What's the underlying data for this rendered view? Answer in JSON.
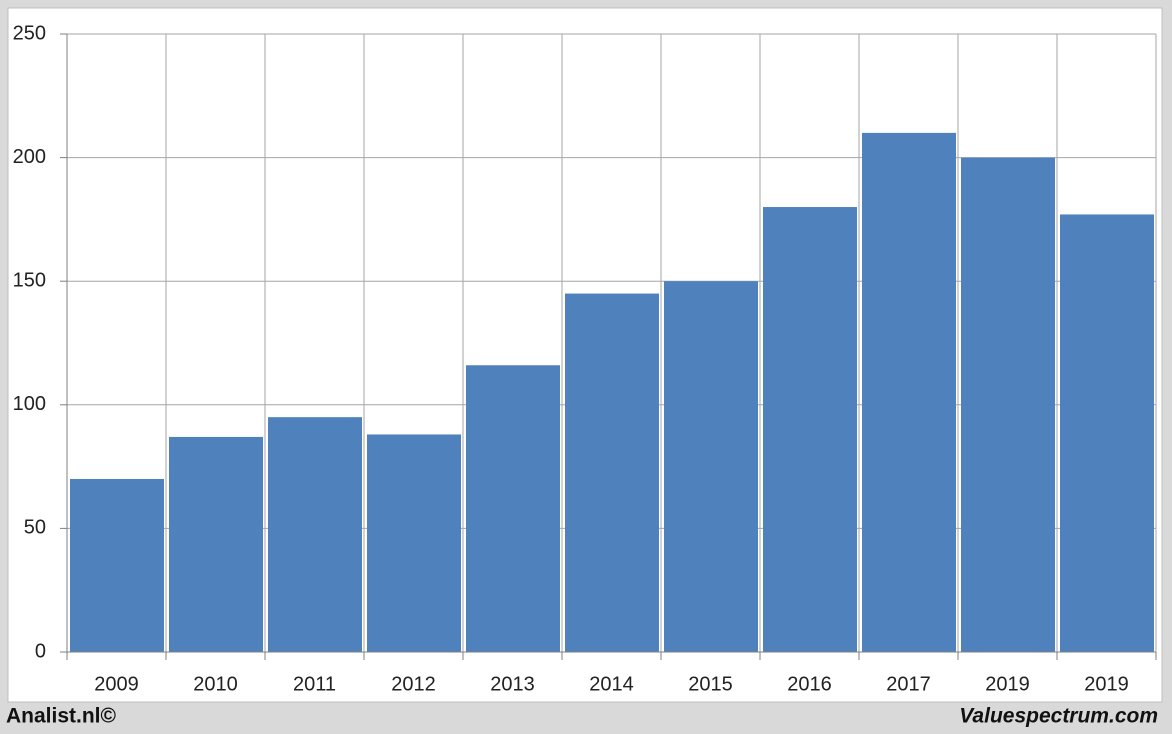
{
  "chart_data": {
    "type": "bar",
    "categories": [
      "2009",
      "2010",
      "2011",
      "2012",
      "2013",
      "2014",
      "2015",
      "2016",
      "2017",
      "2019",
      "2019"
    ],
    "values": [
      70,
      87,
      95,
      88,
      116,
      145,
      150,
      180,
      210,
      200,
      177
    ],
    "color": "#4f81bd",
    "ylim": [
      0,
      250
    ],
    "yticks": [
      0,
      50,
      100,
      150,
      200,
      250
    ],
    "grid": true
  },
  "footer": {
    "left": "Analist.nl©",
    "right": "Valuespectrum.com"
  }
}
